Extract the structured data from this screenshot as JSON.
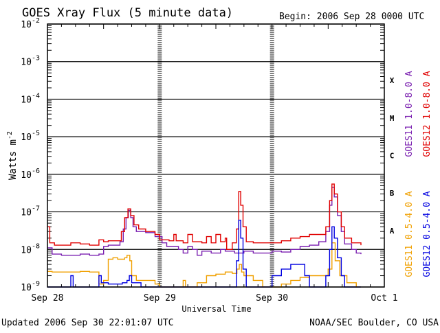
{
  "chart_data": {
    "type": "line",
    "title": "GOES Xray Flux (5 minute data)",
    "begin_label": "Begin:  2006 Sep 28 0000 UTC",
    "ylabel": "Watts m",
    "ylabel_superscript": "-2",
    "xlabel": "Universal Time",
    "updated_label": "Updated 2006 Sep 30 22:01:07 UTC",
    "source_label": "NOAA/SEC Boulder, CO USA",
    "y_scale": "log",
    "ylim": [
      1e-09,
      0.01
    ],
    "y_ticks": [
      {
        "base": "10",
        "exp": "-2"
      },
      {
        "base": "10",
        "exp": "-3"
      },
      {
        "base": "10",
        "exp": "-4"
      },
      {
        "base": "10",
        "exp": "-5"
      },
      {
        "base": "10",
        "exp": "-6"
      },
      {
        "base": "10",
        "exp": "-7"
      },
      {
        "base": "10",
        "exp": "-8"
      },
      {
        "base": "10",
        "exp": "-9"
      }
    ],
    "xlim": [
      0,
      72
    ],
    "x_unit": "hours since 2006 Sep 28 0000 UTC",
    "x_ticks": [
      "Sep 28",
      "Sep 29",
      "Sep 30",
      "Oct 1"
    ],
    "flare_classes": [
      "X",
      "M",
      "C",
      "B",
      "A"
    ],
    "legend_right_outer": [
      {
        "label": "GOES11 1.0-8.0 A",
        "color": "#7a1fb0"
      },
      {
        "label": "GOES11 0.5-4.0 A",
        "color": "#f0a000"
      }
    ],
    "legend_right_inner": [
      {
        "label": "GOES12 1.0-8.0 A",
        "color": "#e00000"
      },
      {
        "label": "GOES12 0.5-4.0 A",
        "color": "#0000e0"
      }
    ],
    "series": [
      {
        "name": "GOES11 1.0-8.0 A",
        "color": "#7a1fb0",
        "points": [
          [
            0,
            1.1e-08
          ],
          [
            1,
            7.5e-09
          ],
          [
            3,
            7e-09
          ],
          [
            5,
            7e-09
          ],
          [
            7,
            7.5e-09
          ],
          [
            9,
            7e-09
          ],
          [
            11,
            7.5e-09
          ],
          [
            12,
            1.2e-08
          ],
          [
            13,
            1.3e-08
          ],
          [
            14,
            1.3e-08
          ],
          [
            15.5,
            1.6e-08
          ],
          [
            16.2,
            3.5e-08
          ],
          [
            16.8,
            7e-08
          ],
          [
            17.3,
            1.1e-07
          ],
          [
            17.8,
            7e-08
          ],
          [
            18.3,
            4e-08
          ],
          [
            19,
            3e-08
          ],
          [
            21,
            2.8e-08
          ],
          [
            23,
            2.2e-08
          ],
          [
            24.5,
            1.5e-08
          ],
          [
            25.5,
            1.2e-08
          ],
          [
            26.5,
            1.2e-08
          ],
          [
            28,
            1e-08
          ],
          [
            29,
            8e-09
          ],
          [
            30,
            1.2e-08
          ],
          [
            31,
            1e-08
          ],
          [
            32,
            7e-09
          ],
          [
            33,
            9e-09
          ],
          [
            35,
            8e-09
          ],
          [
            37,
            1e-08
          ],
          [
            38,
            9e-09
          ],
          [
            40,
            8e-09
          ],
          [
            42,
            9e-09
          ],
          [
            44,
            8e-09
          ],
          [
            46,
            8e-09
          ],
          [
            48,
            9e-09
          ],
          [
            50,
            8.5e-09
          ],
          [
            52,
            1e-08
          ],
          [
            54,
            1.2e-08
          ],
          [
            56,
            1.3e-08
          ],
          [
            58,
            1.6e-08
          ],
          [
            59.5,
            3e-08
          ],
          [
            60.3,
            1.5e-07
          ],
          [
            60.8,
            4.5e-07
          ],
          [
            61.3,
            2.5e-07
          ],
          [
            62,
            8e-08
          ],
          [
            62.8,
            3e-08
          ],
          [
            63.5,
            1.4e-08
          ],
          [
            65,
            1e-08
          ],
          [
            66,
            8e-09
          ],
          [
            67,
            7.5e-09
          ]
        ]
      },
      {
        "name": "GOES12 1.0-8.0 A",
        "color": "#e00000",
        "points": [
          [
            0,
            4e-08
          ],
          [
            0.5,
            1.5e-08
          ],
          [
            1.5,
            1.3e-08
          ],
          [
            3,
            1.3e-08
          ],
          [
            5,
            1.5e-08
          ],
          [
            7,
            1.4e-08
          ],
          [
            9,
            1.3e-08
          ],
          [
            11,
            1.8e-08
          ],
          [
            12,
            1.6e-08
          ],
          [
            13,
            1.7e-08
          ],
          [
            15,
            1.7e-08
          ],
          [
            15.8,
            3e-08
          ],
          [
            16.5,
            7e-08
          ],
          [
            17.2,
            1.2e-07
          ],
          [
            17.8,
            8e-08
          ],
          [
            18.5,
            4.5e-08
          ],
          [
            19.5,
            3.5e-08
          ],
          [
            21,
            3e-08
          ],
          [
            23,
            2.5e-08
          ],
          [
            24,
            1.8e-08
          ],
          [
            26,
            1.7e-08
          ],
          [
            27,
            2.5e-08
          ],
          [
            27.5,
            1.7e-08
          ],
          [
            29,
            1.5e-08
          ],
          [
            30,
            2.5e-08
          ],
          [
            31,
            1.6e-08
          ],
          [
            33,
            1.5e-08
          ],
          [
            34,
            2.2e-08
          ],
          [
            35,
            1.5e-08
          ],
          [
            36,
            2.5e-08
          ],
          [
            37,
            1.6e-08
          ],
          [
            38,
            2e-08
          ],
          [
            38.3,
            1e-08
          ],
          [
            39.5,
            1.5e-08
          ],
          [
            40.4,
            3.5e-08
          ],
          [
            40.9,
            3.5e-07
          ],
          [
            41.3,
            1.5e-07
          ],
          [
            41.8,
            4e-08
          ],
          [
            42.5,
            1.6e-08
          ],
          [
            44,
            1.5e-08
          ],
          [
            46,
            1.5e-08
          ],
          [
            48,
            1.5e-08
          ],
          [
            50,
            1.7e-08
          ],
          [
            52,
            2e-08
          ],
          [
            54,
            2.2e-08
          ],
          [
            56,
            2.5e-08
          ],
          [
            58,
            2.5e-08
          ],
          [
            59.5,
            4e-08
          ],
          [
            60.3,
            2e-07
          ],
          [
            60.8,
            5.5e-07
          ],
          [
            61.3,
            3e-07
          ],
          [
            62,
            1e-07
          ],
          [
            62.8,
            4e-08
          ],
          [
            63.5,
            2e-08
          ],
          [
            65,
            1.5e-08
          ],
          [
            67,
            1.3e-08
          ]
        ]
      },
      {
        "name": "GOES11 0.5-4.0 A",
        "color": "#f0a000",
        "points": [
          [
            0,
            2.6e-09
          ],
          [
            1,
            2.5e-09
          ],
          [
            3,
            2.5e-09
          ],
          [
            5,
            2.5e-09
          ],
          [
            7,
            2.6e-09
          ],
          [
            9,
            2.5e-09
          ],
          [
            11,
            1.2e-09
          ],
          [
            12,
            1.5e-09
          ],
          [
            13,
            5.5e-09
          ],
          [
            14,
            6e-09
          ],
          [
            15,
            5.5e-09
          ],
          [
            16.5,
            6e-09
          ],
          [
            17,
            7e-09
          ],
          [
            17.6,
            5e-09
          ],
          [
            18,
            2e-09
          ],
          [
            19,
            1.5e-09
          ],
          [
            21,
            1.5e-09
          ],
          [
            23,
            1.2e-09
          ],
          [
            24,
            1e-09
          ],
          [
            26,
            1e-09
          ],
          [
            28,
            1e-09
          ],
          [
            29,
            1.5e-09
          ],
          [
            29.5,
            1e-09
          ],
          [
            31,
            1e-09
          ],
          [
            32,
            1.3e-09
          ],
          [
            34,
            2e-09
          ],
          [
            36,
            2.2e-09
          ],
          [
            38,
            2.5e-09
          ],
          [
            39.5,
            2.3e-09
          ],
          [
            40.5,
            3e-09
          ],
          [
            41,
            4e-09
          ],
          [
            41.5,
            2.5e-09
          ],
          [
            42,
            2e-09
          ],
          [
            44,
            1.5e-09
          ],
          [
            46,
            1e-09
          ],
          [
            48,
            1e-09
          ],
          [
            50,
            1.2e-09
          ],
          [
            52,
            1.5e-09
          ],
          [
            54,
            1.8e-09
          ],
          [
            56,
            2e-09
          ],
          [
            58,
            2e-09
          ],
          [
            60,
            3e-09
          ],
          [
            60.8,
            1.5e-08
          ],
          [
            61.5,
            5e-09
          ],
          [
            62.5,
            2e-09
          ],
          [
            64,
            1.3e-09
          ],
          [
            66,
            1e-09
          ],
          [
            67,
            1e-09
          ]
        ]
      },
      {
        "name": "GOES12 0.5-4.0 A",
        "color": "#0000e0",
        "points": [
          [
            0,
            1e-09
          ],
          [
            2,
            1e-09
          ],
          [
            4.5,
            1e-09
          ],
          [
            5,
            2e-09
          ],
          [
            5.5,
            1e-09
          ],
          [
            8,
            1e-09
          ],
          [
            10.5,
            1e-09
          ],
          [
            11,
            2e-09
          ],
          [
            11.5,
            1.3e-09
          ],
          [
            13,
            1.2e-09
          ],
          [
            15,
            1.2e-09
          ],
          [
            16,
            1.3e-09
          ],
          [
            17,
            1.5e-09
          ],
          [
            17.5,
            2e-09
          ],
          [
            18,
            1.3e-09
          ],
          [
            20,
            1e-09
          ],
          [
            24,
            1e-09
          ],
          [
            28,
            1e-09
          ],
          [
            30,
            1e-09
          ],
          [
            32,
            1e-09
          ],
          [
            34,
            1e-09
          ],
          [
            36,
            1e-09
          ],
          [
            38,
            1e-09
          ],
          [
            39.5,
            1e-09
          ],
          [
            40.4,
            5e-09
          ],
          [
            40.9,
            6e-08
          ],
          [
            41.3,
            2e-08
          ],
          [
            41.8,
            3e-09
          ],
          [
            42.5,
            1e-09
          ],
          [
            44,
            1e-09
          ],
          [
            46,
            1e-09
          ],
          [
            48,
            2e-09
          ],
          [
            50,
            3e-09
          ],
          [
            52,
            4e-09
          ],
          [
            54,
            4e-09
          ],
          [
            55,
            2e-09
          ],
          [
            56,
            1e-09
          ],
          [
            58,
            1e-09
          ],
          [
            59.5,
            2e-09
          ],
          [
            60.3,
            1e-08
          ],
          [
            60.8,
            4e-08
          ],
          [
            61.3,
            2e-08
          ],
          [
            62,
            6e-09
          ],
          [
            62.8,
            2e-09
          ],
          [
            63.5,
            1e-09
          ],
          [
            65,
            1e-09
          ],
          [
            67,
            1e-09
          ]
        ]
      }
    ]
  }
}
